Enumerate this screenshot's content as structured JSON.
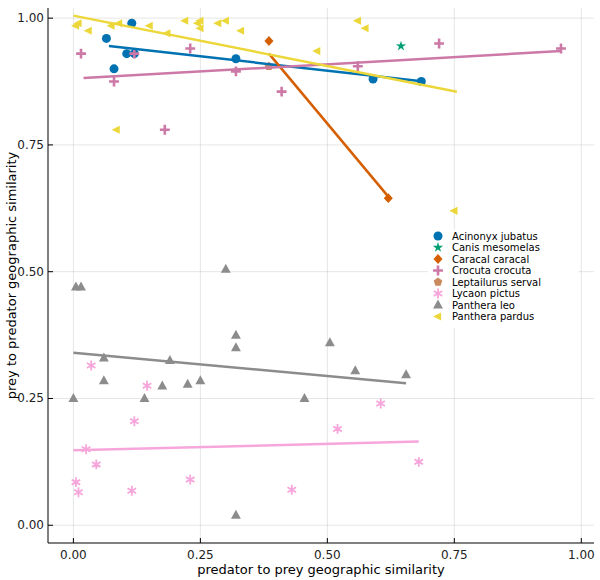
{
  "chart_data": {
    "type": "scatter",
    "x_label": "predator to prey geographic similarity",
    "y_label": "prey to predator geographic similarity",
    "xlim": [
      -0.05,
      1.025
    ],
    "ylim": [
      -0.035,
      1.02
    ],
    "xticks": [
      {
        "value": 0,
        "label": "0.00"
      },
      {
        "value": 0.25,
        "label": "0.25"
      },
      {
        "value": 0.5,
        "label": "0.50"
      },
      {
        "value": 0.75,
        "label": "0.75"
      },
      {
        "value": 1,
        "label": "1.00"
      }
    ],
    "yticks": [
      {
        "value": 0,
        "label": "0.00"
      },
      {
        "value": 0.25,
        "label": "0.25"
      },
      {
        "value": 0.5,
        "label": "0.50"
      },
      {
        "value": 0.75,
        "label": "0.75"
      },
      {
        "value": 1,
        "label": "1.00"
      }
    ],
    "grid": true,
    "legend": "right",
    "series": [
      {
        "name": "Acinonyx jubatus",
        "color": "#0072b2",
        "marker": "circle",
        "x": [
          0.065,
          0.08,
          0.105,
          0.12,
          0.115,
          0.32,
          0.59,
          0.685
        ],
        "values": [
          0.96,
          0.9,
          0.93,
          0.93,
          0.99,
          0.92,
          0.88,
          0.875
        ],
        "trend": {
          "x": [
            0.07,
            0.69
          ],
          "values": [
            0.945,
            0.875
          ]
        }
      },
      {
        "name": "Canis mesomelas",
        "color": "#009e73",
        "marker": "star",
        "x": [
          0.645
        ],
        "values": [
          0.945
        ]
      },
      {
        "name": "Caracal caracal",
        "color": "#d55e00",
        "marker": "diamond",
        "x": [
          0.385,
          0.62
        ],
        "values": [
          0.955,
          0.645
        ],
        "trend": {
          "x": [
            0.385,
            0.62
          ],
          "values": [
            0.93,
            0.648
          ]
        }
      },
      {
        "name": "Crocuta crocuta",
        "color": "#cc79a7",
        "marker": "cross",
        "x": [
          0.015,
          0.08,
          0.12,
          0.18,
          0.23,
          0.32,
          0.41,
          0.56,
          0.72,
          0.96
        ],
        "values": [
          0.93,
          0.875,
          0.93,
          0.78,
          0.94,
          0.895,
          0.855,
          0.905,
          0.95,
          0.94
        ],
        "trend": {
          "x": [
            0.02,
            0.96
          ],
          "values": [
            0.882,
            0.935
          ]
        }
      },
      {
        "name": "Leptailurus serval",
        "color": "#ca8a5f",
        "marker": "pentagon",
        "x": [
          0.385
        ],
        "values": [
          0.905
        ]
      },
      {
        "name": "Lycaon pictus",
        "color": "#f7a6dc",
        "marker": "asterisk",
        "x": [
          0.035,
          0.145,
          0.12,
          0.025,
          0.045,
          0.005,
          0.01,
          0.115,
          0.23,
          0.43,
          0.52,
          0.605,
          0.68
        ],
        "values": [
          0.315,
          0.275,
          0.205,
          0.15,
          0.12,
          0.085,
          0.065,
          0.068,
          0.09,
          0.07,
          0.19,
          0.24,
          0.125
        ],
        "trend": {
          "x": [
            0.0,
            0.68
          ],
          "values": [
            0.148,
            0.165
          ]
        }
      },
      {
        "name": "Panthera leo",
        "color": "#8c8c8c",
        "marker": "triangle",
        "x": [
          0.005,
          0.015,
          0.0,
          0.06,
          0.06,
          0.14,
          0.175,
          0.19,
          0.225,
          0.25,
          0.3,
          0.32,
          0.32,
          0.32,
          0.455,
          0.505,
          0.555,
          0.655
        ],
        "values": [
          0.47,
          0.47,
          0.25,
          0.33,
          0.285,
          0.25,
          0.275,
          0.325,
          0.278,
          0.285,
          0.505,
          0.375,
          0.35,
          0.02,
          0.25,
          0.36,
          0.305,
          0.297
        ],
        "trend": {
          "x": [
            0.0,
            0.655
          ],
          "values": [
            0.34,
            0.28
          ]
        }
      },
      {
        "name": "Panthera pardus",
        "color": "#ecd73a",
        "marker": "ltriangle",
        "x": [
          0.005,
          0.01,
          0.03,
          0.075,
          0.09,
          0.085,
          0.15,
          0.185,
          0.22,
          0.245,
          0.25,
          0.25,
          0.285,
          0.3,
          0.33,
          0.48,
          0.56,
          0.575,
          0.75
        ],
        "values": [
          0.985,
          0.99,
          0.975,
          0.985,
          0.99,
          0.78,
          0.985,
          0.97,
          0.995,
          0.99,
          0.98,
          0.995,
          0.99,
          0.995,
          0.975,
          0.935,
          0.995,
          0.98,
          0.62
        ],
        "trend": {
          "x": [
            0.0,
            0.755
          ],
          "values": [
            1.005,
            0.855
          ]
        }
      }
    ]
  }
}
